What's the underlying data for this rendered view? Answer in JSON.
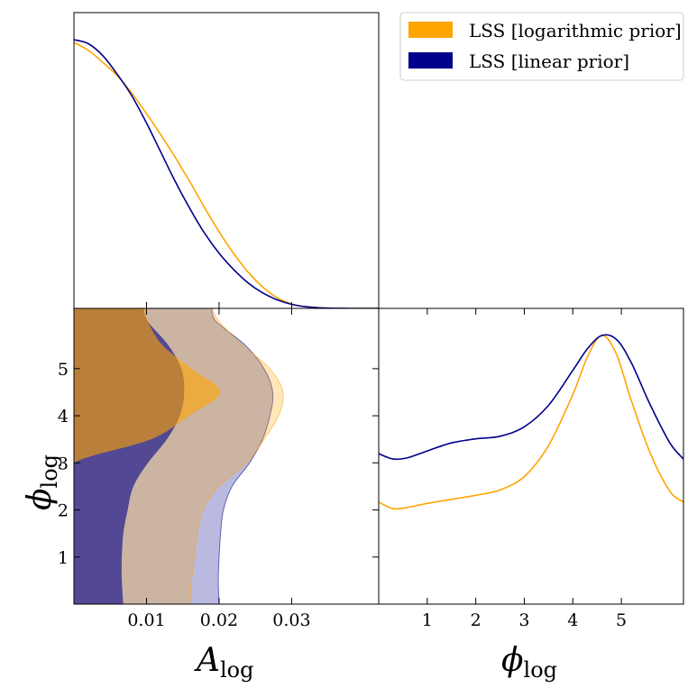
{
  "chart_data": {
    "type": "corner-plot",
    "legend": {
      "placement": "top-right",
      "entries": [
        {
          "label": "LSS [logarithmic prior]",
          "color": "#FFA500"
        },
        {
          "label": "LSS [linear prior]",
          "color": "#00008B"
        }
      ]
    },
    "parameters": [
      {
        "symbol": "A",
        "subscript": "log",
        "range": [
          0.0,
          0.042
        ],
        "ticks": [
          0.01,
          0.02,
          0.03
        ],
        "tick_labels": [
          "0.01",
          "0.02",
          "0.03"
        ]
      },
      {
        "symbol": "ϕ",
        "subscript": "log",
        "range": [
          0.0,
          6.28
        ],
        "ticks": [
          1,
          2,
          3,
          4,
          5
        ],
        "tick_labels": [
          "1",
          "2",
          "3",
          "4",
          "5"
        ]
      }
    ],
    "marginals": {
      "A_log": {
        "x": [
          0.0,
          0.002,
          0.004,
          0.006,
          0.008,
          0.01,
          0.012,
          0.014,
          0.016,
          0.018,
          0.02,
          0.022,
          0.024,
          0.026,
          0.028,
          0.03,
          0.032,
          0.034,
          0.036,
          0.038,
          0.042
        ],
        "series": [
          {
            "name": "LSS [logarithmic prior]",
            "color": "#FFA500",
            "values": [
              0.99,
              0.96,
              0.915,
              0.865,
              0.8,
              0.725,
              0.645,
              0.56,
              0.47,
              0.375,
              0.285,
              0.205,
              0.135,
              0.08,
              0.04,
              0.016,
              0.006,
              0.002,
              0.0005,
              0.0001,
              0.0
            ]
          },
          {
            "name": "LSS [linear prior]",
            "color": "#00008B",
            "values": [
              1.0,
              0.985,
              0.94,
              0.87,
              0.79,
              0.69,
              0.58,
              0.47,
              0.37,
              0.28,
              0.205,
              0.145,
              0.095,
              0.058,
              0.032,
              0.015,
              0.006,
              0.002,
              0.0005,
              0.0001,
              0.0
            ]
          }
        ]
      },
      "phi_log": {
        "x": [
          0.0,
          0.3,
          0.6,
          1.0,
          1.5,
          2.0,
          2.5,
          3.0,
          3.5,
          4.0,
          4.3,
          4.6,
          4.9,
          5.2,
          5.6,
          6.0,
          6.28
        ],
        "series": [
          {
            "name": "LSS [logarithmic prior]",
            "color": "#FFA500",
            "values": [
              0.38,
              0.355,
              0.36,
              0.375,
              0.39,
              0.405,
              0.425,
              0.475,
              0.59,
              0.78,
              0.92,
              1.0,
              0.93,
              0.76,
              0.56,
              0.42,
              0.38
            ]
          },
          {
            "name": "LSS [linear prior]",
            "color": "#00008B",
            "values": [
              0.56,
              0.54,
              0.545,
              0.57,
              0.6,
              0.615,
              0.625,
              0.66,
              0.74,
              0.87,
              0.95,
              1.0,
              0.985,
              0.9,
              0.74,
              0.6,
              0.54
            ]
          }
        ]
      }
    },
    "contours_2d": {
      "phi": [
        0.0,
        0.5,
        1.0,
        1.5,
        2.0,
        2.5,
        3.0,
        3.5,
        4.0,
        4.5,
        5.0,
        5.5,
        6.0,
        6.28
      ],
      "series": [
        {
          "name": "LSS [logarithmic prior]",
          "color": "#FFA500",
          "inner_A": [
            0.0,
            0.0,
            0.0,
            0.0,
            0.0,
            0.0,
            0.0,
            0.0106,
            0.0158,
            0.0202,
            0.0162,
            0.0122,
            0.0102,
            0.0098
          ],
          "outer_A": [
            0.016,
            0.0162,
            0.0166,
            0.017,
            0.0178,
            0.02,
            0.0238,
            0.0262,
            0.0282,
            0.0288,
            0.027,
            0.0232,
            0.02,
            0.019
          ]
        },
        {
          "name": "LSS [linear prior]",
          "color": "#00008B",
          "inner_A": [
            0.0068,
            0.0066,
            0.0066,
            0.0068,
            0.0074,
            0.0082,
            0.0102,
            0.0128,
            0.0146,
            0.0152,
            0.0148,
            0.013,
            0.0102,
            0.0096
          ],
          "outer_A": [
            0.02,
            0.0199,
            0.02,
            0.0202,
            0.0206,
            0.0218,
            0.0242,
            0.026,
            0.027,
            0.0274,
            0.0262,
            0.0236,
            0.0196,
            0.019
          ]
        }
      ]
    }
  }
}
